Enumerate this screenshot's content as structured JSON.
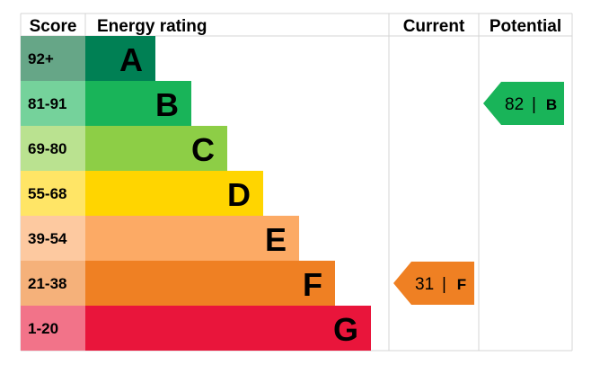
{
  "header": {
    "score_label": "Score",
    "rating_label": "Energy rating",
    "current_label": "Current",
    "potential_label": "Potential"
  },
  "chart_data": {
    "type": "bar",
    "categories": [
      "A",
      "B",
      "C",
      "D",
      "E",
      "F",
      "G"
    ],
    "score_ranges": [
      "92+",
      "81-91",
      "69-80",
      "55-68",
      "39-54",
      "21-38",
      "1-20"
    ],
    "bar_colors": [
      "#008054",
      "#19b459",
      "#8dce46",
      "#ffd500",
      "#fcaa65",
      "#ef8023",
      "#e9153b"
    ],
    "score_cell_colors": [
      "#66a687",
      "#75d29b",
      "#bae290",
      "#ffe566",
      "#fdc9a0",
      "#f5b17a",
      "#f27389"
    ],
    "grid": true,
    "legend": "none",
    "current": {
      "value": 31,
      "rating": "F",
      "color": "#ef8023"
    },
    "potential": {
      "value": 82,
      "rating": "B",
      "color": "#19b459"
    }
  }
}
